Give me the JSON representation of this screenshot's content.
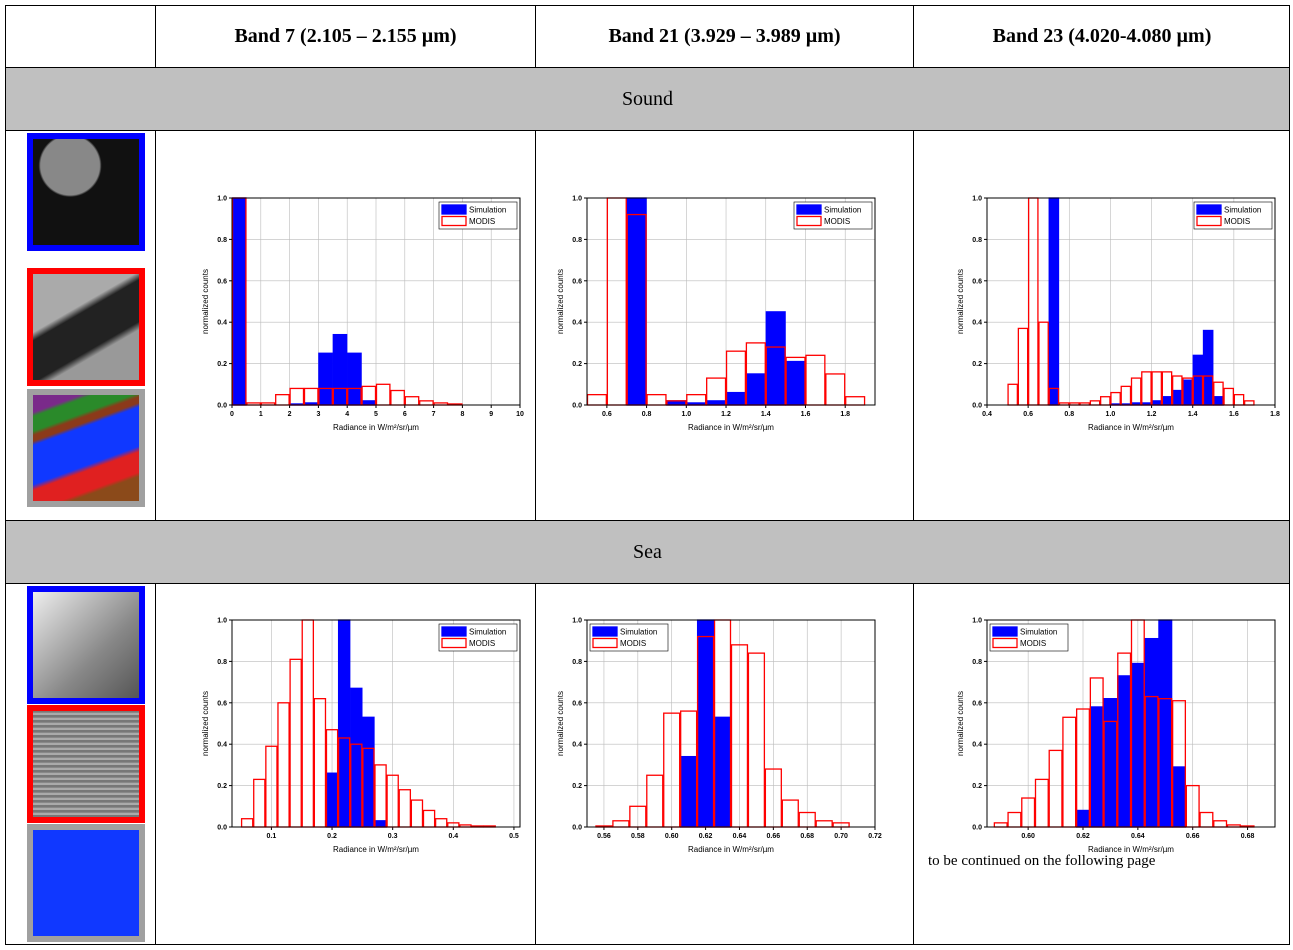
{
  "table": {
    "header": [
      "Band 7 (2.105 – 2.155 µm)",
      "Band 21 (3.929 – 3.989 µm)",
      "Band 23 (4.020-4.080 µm)"
    ],
    "sections": [
      {
        "label": "Sound",
        "charts": [
          {
            "type": "histogram",
            "xlabel": "Radiance in W/m²/sr/µm",
            "ylabel": "normalized counts",
            "grid": true,
            "legend": "upper right",
            "xlim": [
              0,
              10
            ],
            "xticks": [
              0,
              1,
              2,
              3,
              4,
              5,
              6,
              7,
              8,
              9,
              10
            ],
            "ylim": [
              0,
              1
            ],
            "yticks": [
              {
                "value": 0,
                "label": "0.0"
              },
              0.2,
              0.4,
              0.6,
              0.8,
              {
                "value": 1,
                "label": "1.0"
              }
            ],
            "bins": [
              0,
              0.5,
              1,
              1.5,
              2,
              2.5,
              3,
              3.5,
              4,
              4.5,
              5,
              5.5,
              6,
              6.5,
              7,
              7.5,
              8,
              8.5,
              9,
              9.5,
              10
            ],
            "series": [
              {
                "name": "Simulation",
                "color": "#0000ff",
                "fill": "#0000ff",
                "values": [
                  1.0,
                  0,
                  0,
                  0,
                  0.005,
                  0.01,
                  0.25,
                  0.34,
                  0.25,
                  0.02,
                  0,
                  0,
                  0,
                  0,
                  0,
                  0,
                  0,
                  0,
                  0,
                  0
                ]
              },
              {
                "name": "MODIS",
                "color": "#ff0000",
                "fill": "none",
                "values": [
                  1.0,
                  0.01,
                  0.01,
                  0.05,
                  0.08,
                  0.08,
                  0.08,
                  0.08,
                  0.08,
                  0.09,
                  0.1,
                  0.07,
                  0.04,
                  0.02,
                  0.01,
                  0.005,
                  0,
                  0,
                  0,
                  0
                ]
              }
            ]
          },
          {
            "type": "histogram",
            "xlabel": "Radiance in W/m²/sr/µm",
            "ylabel": "normalized counts",
            "grid": true,
            "legend": "upper right",
            "xlim": [
              0.5,
              1.95
            ],
            "xticks": [
              0.6,
              0.8,
              {
                "value": 1,
                "label": "1.0"
              },
              1.2,
              1.4,
              1.6,
              1.8
            ],
            "ylim": [
              0,
              1
            ],
            "yticks": [
              {
                "value": 0,
                "label": "0.0"
              },
              0.2,
              0.4,
              0.6,
              0.8,
              {
                "value": 1,
                "label": "1.0"
              }
            ],
            "bins": [
              0.5,
              0.6,
              0.7,
              0.8,
              0.9,
              1.0,
              1.1,
              1.2,
              1.3,
              1.4,
              1.5,
              1.6,
              1.7,
              1.8,
              1.9
            ],
            "series": [
              {
                "name": "Simulation",
                "color": "#0000ff",
                "fill": "#0000ff",
                "values": [
                  0,
                  0,
                  1.0,
                  0,
                  0.02,
                  0.01,
                  0.02,
                  0.06,
                  0.15,
                  0.45,
                  0.21,
                  0,
                  0,
                  0
                ]
              },
              {
                "name": "MODIS",
                "color": "#ff0000",
                "fill": "none",
                "values": [
                  0.05,
                  1.0,
                  0.92,
                  0.05,
                  0.02,
                  0.05,
                  0.13,
                  0.26,
                  0.3,
                  0.28,
                  0.23,
                  0.24,
                  0.15,
                  0.04
                ]
              }
            ]
          },
          {
            "type": "histogram",
            "xlabel": "Radiance in W/m²/sr/µm",
            "ylabel": "normalized counts",
            "grid": true,
            "legend": "upper right",
            "xlim": [
              0.4,
              1.8
            ],
            "xticks": [
              0.4,
              0.6,
              0.8,
              {
                "value": 1,
                "label": "1.0"
              },
              1.2,
              1.4,
              1.6,
              1.8
            ],
            "ylim": [
              0,
              1
            ],
            "yticks": [
              {
                "value": 0,
                "label": "0.0"
              },
              0.2,
              0.4,
              0.6,
              0.8,
              {
                "value": 1,
                "label": "1.0"
              }
            ],
            "bins": [
              0.5,
              0.55,
              0.6,
              0.65,
              0.7,
              0.75,
              0.8,
              0.85,
              0.9,
              0.95,
              1.0,
              1.05,
              1.1,
              1.15,
              1.2,
              1.25,
              1.3,
              1.35,
              1.4,
              1.45,
              1.5,
              1.55,
              1.6,
              1.65,
              1.7
            ],
            "series": [
              {
                "name": "Simulation",
                "color": "#0000ff",
                "fill": "#0000ff",
                "values": [
                  0,
                  0,
                  0,
                  0,
                  1.0,
                  0,
                  0,
                  0,
                  0,
                  0,
                  0.005,
                  0.005,
                  0.01,
                  0.01,
                  0.02,
                  0.04,
                  0.07,
                  0.12,
                  0.24,
                  0.36,
                  0.04,
                  0,
                  0,
                  0
                ]
              },
              {
                "name": "MODIS",
                "color": "#ff0000",
                "fill": "none",
                "values": [
                  0.1,
                  0.37,
                  1.0,
                  0.4,
                  0.08,
                  0.01,
                  0.01,
                  0.01,
                  0.02,
                  0.04,
                  0.06,
                  0.09,
                  0.13,
                  0.16,
                  0.16,
                  0.16,
                  0.14,
                  0.13,
                  0.14,
                  0.14,
                  0.11,
                  0.08,
                  0.05,
                  0.02
                ]
              }
            ]
          }
        ]
      },
      {
        "label": "Sea",
        "note": "to be continued on the following page",
        "charts": [
          {
            "type": "histogram",
            "xlabel": "Radiance in W/m²/sr/µm",
            "ylabel": "normalized counts",
            "grid": true,
            "legend": "upper right",
            "xlim": [
              0.035,
              0.51
            ],
            "xticks": [
              0.1,
              0.2,
              0.3,
              0.4,
              0.5
            ],
            "ylim": [
              0,
              1
            ],
            "yticks": [
              {
                "value": 0,
                "label": "0.0"
              },
              0.2,
              0.4,
              0.6,
              0.8,
              {
                "value": 1,
                "label": "1.0"
              }
            ],
            "bins": [
              0.05,
              0.07,
              0.09,
              0.11,
              0.13,
              0.15,
              0.17,
              0.19,
              0.21,
              0.23,
              0.25,
              0.27,
              0.29,
              0.31,
              0.33,
              0.35,
              0.37,
              0.39,
              0.41,
              0.43,
              0.45,
              0.47,
              0.49,
              0.51
            ],
            "series": [
              {
                "name": "Simulation",
                "color": "#0000ff",
                "fill": "#0000ff",
                "values": [
                  0,
                  0,
                  0,
                  0,
                  0,
                  0,
                  0,
                  0.26,
                  1.0,
                  0.67,
                  0.53,
                  0.03,
                  0,
                  0,
                  0,
                  0,
                  0,
                  0,
                  0,
                  0,
                  0,
                  0,
                  0
                ]
              },
              {
                "name": "MODIS",
                "color": "#ff0000",
                "fill": "none",
                "values": [
                  0.04,
                  0.23,
                  0.39,
                  0.6,
                  0.81,
                  1.0,
                  0.62,
                  0.47,
                  0.43,
                  0.4,
                  0.38,
                  0.3,
                  0.25,
                  0.18,
                  0.13,
                  0.08,
                  0.04,
                  0.02,
                  0.01,
                  0.005,
                  0.005,
                  0,
                  0
                ]
              }
            ]
          },
          {
            "type": "histogram",
            "xlabel": "Radiance in W/m²/sr/µm",
            "ylabel": "normalized counts",
            "grid": true,
            "legend": "upper left",
            "xlim": [
              0.55,
              0.72
            ],
            "xticks": [
              0.56,
              0.58,
              {
                "value": 0.6,
                "label": "0.60"
              },
              0.62,
              0.64,
              0.66,
              0.68,
              {
                "value": 0.7,
                "label": "0.70"
              },
              0.72
            ],
            "ylim": [
              0,
              1
            ],
            "yticks": [
              {
                "value": 0,
                "label": "0.0"
              },
              0.2,
              0.4,
              0.6,
              0.8,
              {
                "value": 1,
                "label": "1.0"
              }
            ],
            "bins": [
              0.555,
              0.565,
              0.575,
              0.585,
              0.595,
              0.605,
              0.615,
              0.625,
              0.635,
              0.645,
              0.655,
              0.665,
              0.675,
              0.685,
              0.695,
              0.705,
              0.715
            ],
            "series": [
              {
                "name": "Simulation",
                "color": "#0000ff",
                "fill": "#0000ff",
                "values": [
                  0,
                  0,
                  0,
                  0,
                  0,
                  0.34,
                  1.0,
                  0.53,
                  0,
                  0,
                  0,
                  0,
                  0,
                  0,
                  0,
                  0
                ]
              },
              {
                "name": "MODIS",
                "color": "#ff0000",
                "fill": "none",
                "values": [
                  0.005,
                  0.03,
                  0.1,
                  0.25,
                  0.55,
                  0.56,
                  0.92,
                  1.0,
                  0.88,
                  0.84,
                  0.28,
                  0.13,
                  0.07,
                  0.03,
                  0.02,
                  0
                ]
              }
            ]
          },
          {
            "type": "histogram",
            "xlabel": "Radiance in W/m²/sr/µm",
            "ylabel": "normalized counts",
            "grid": true,
            "legend": "upper left",
            "xlim": [
              0.585,
              0.69
            ],
            "xticks": [
              {
                "value": 0.6,
                "label": "0.60"
              },
              0.62,
              0.64,
              0.66,
              0.68
            ],
            "ylim": [
              0,
              1
            ],
            "yticks": [
              {
                "value": 0,
                "label": "0.0"
              },
              0.2,
              0.4,
              0.6,
              0.8,
              {
                "value": 1,
                "label": "1.0"
              }
            ],
            "bins": [
              0.5875,
              0.5925,
              0.5975,
              0.6025,
              0.6075,
              0.6125,
              0.6175,
              0.6225,
              0.6275,
              0.6325,
              0.6375,
              0.6425,
              0.6475,
              0.6525,
              0.6575,
              0.6625,
              0.6675,
              0.6725,
              0.6775,
              0.6825
            ],
            "series": [
              {
                "name": "Simulation",
                "color": "#0000ff",
                "fill": "#0000ff",
                "values": [
                  0,
                  0,
                  0,
                  0,
                  0,
                  0,
                  0.08,
                  0.58,
                  0.62,
                  0.73,
                  0.79,
                  0.91,
                  1.0,
                  0.29,
                  0,
                  0,
                  0,
                  0,
                  0
                ]
              },
              {
                "name": "MODIS",
                "color": "#ff0000",
                "fill": "none",
                "values": [
                  0.02,
                  0.07,
                  0.14,
                  0.23,
                  0.37,
                  0.53,
                  0.57,
                  0.72,
                  0.51,
                  0.84,
                  1.0,
                  0.63,
                  0.62,
                  0.61,
                  0.2,
                  0.07,
                  0.03,
                  0.01,
                  0.005
                ]
              }
            ]
          }
        ]
      }
    ]
  }
}
